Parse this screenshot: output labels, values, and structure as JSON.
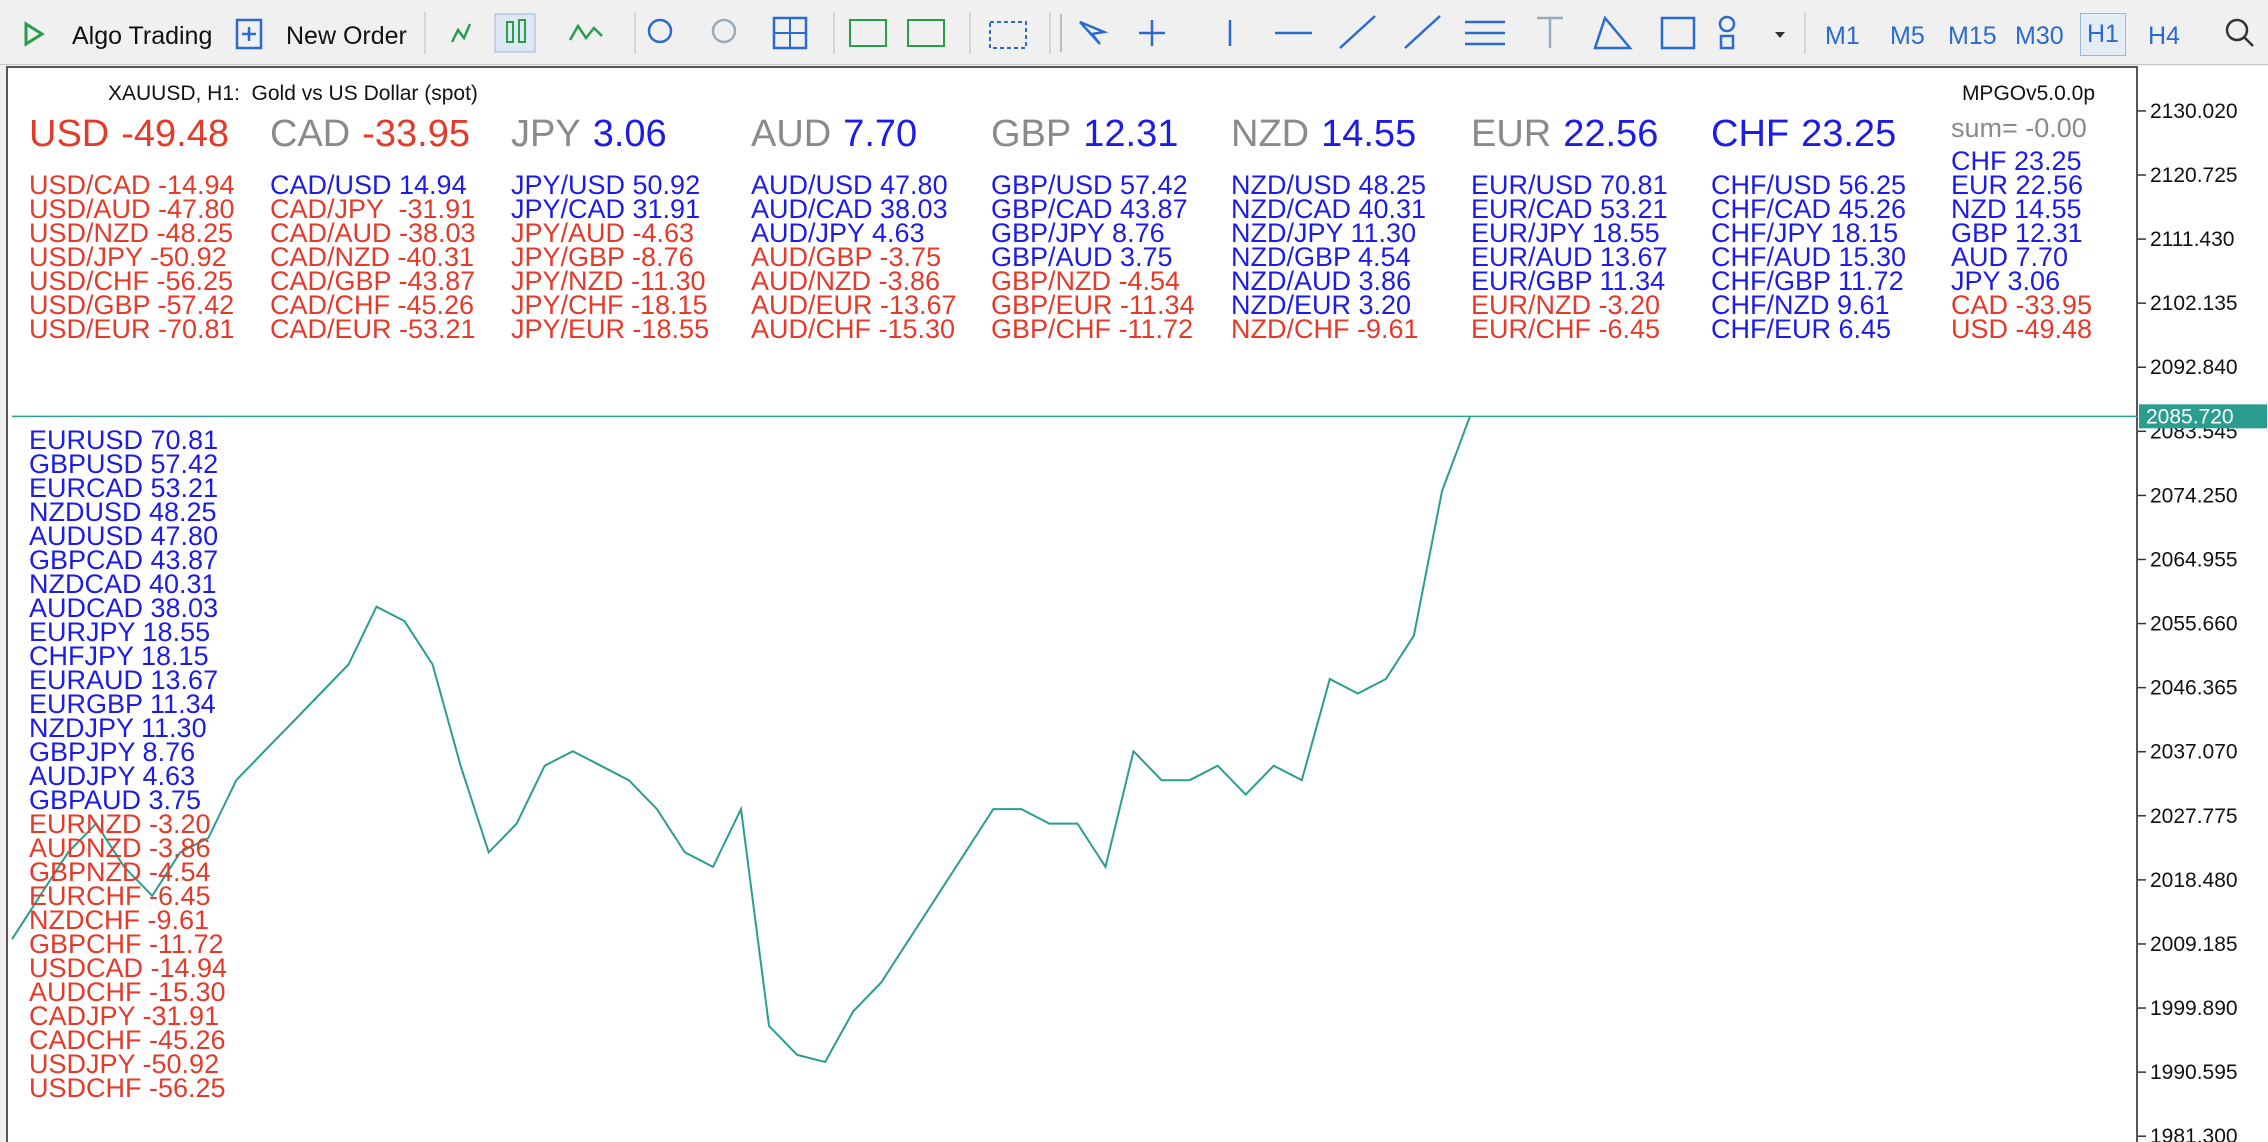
{
  "toolbar": {
    "algo_trading": "Algo Trading",
    "new_order": "New Order",
    "timeframes": [
      "M1",
      "M5",
      "M15",
      "M30",
      "H1",
      "H4"
    ],
    "active_index": 4
  },
  "chart_header": {
    "symbol": "XAUUSD, H1:  Gold vs US Dollar (spot)",
    "indicator": "MPGOv5.0.0p"
  },
  "colors": {
    "positive": "#1c1ce6",
    "negative": "#e5392a",
    "neutral": "#8a8a8a"
  },
  "strength": [
    {
      "currency": "USD",
      "value": "-49.48",
      "label_tone": "negative",
      "value_tone": "negative"
    },
    {
      "currency": "CAD",
      "value": "-33.95",
      "label_tone": "neutral",
      "value_tone": "negative"
    },
    {
      "currency": "JPY",
      "value": "3.06",
      "label_tone": "neutral",
      "value_tone": "positive"
    },
    {
      "currency": "AUD",
      "value": "7.70",
      "label_tone": "neutral",
      "value_tone": "positive"
    },
    {
      "currency": "GBP",
      "value": "12.31",
      "label_tone": "neutral",
      "value_tone": "positive"
    },
    {
      "currency": "NZD",
      "value": "14.55",
      "label_tone": "neutral",
      "value_tone": "positive"
    },
    {
      "currency": "EUR",
      "value": "22.56",
      "label_tone": "neutral",
      "value_tone": "positive"
    },
    {
      "currency": "CHF",
      "value": "23.25",
      "label_tone": "positive",
      "value_tone": "positive"
    }
  ],
  "pairs": [
    [
      {
        "text": "USD/CAD -14.94",
        "tone": "negative"
      },
      {
        "text": "USD/AUD -47.80",
        "tone": "negative"
      },
      {
        "text": "USD/NZD -48.25",
        "tone": "negative"
      },
      {
        "text": "USD/JPY -50.92",
        "tone": "negative"
      },
      {
        "text": "USD/CHF -56.25",
        "tone": "negative"
      },
      {
        "text": "USD/GBP -57.42",
        "tone": "negative"
      },
      {
        "text": "USD/EUR -70.81",
        "tone": "negative"
      }
    ],
    [
      {
        "text": "CAD/USD 14.94",
        "tone": "positive"
      },
      {
        "text": "CAD/JPY  -31.91",
        "tone": "negative"
      },
      {
        "text": "CAD/AUD -38.03",
        "tone": "negative"
      },
      {
        "text": "CAD/NZD -40.31",
        "tone": "negative"
      },
      {
        "text": "CAD/GBP -43.87",
        "tone": "negative"
      },
      {
        "text": "CAD/CHF -45.26",
        "tone": "negative"
      },
      {
        "text": "CAD/EUR -53.21",
        "tone": "negative"
      }
    ],
    [
      {
        "text": "JPY/USD 50.92",
        "tone": "positive"
      },
      {
        "text": "JPY/CAD 31.91",
        "tone": "positive"
      },
      {
        "text": "JPY/AUD -4.63",
        "tone": "negative"
      },
      {
        "text": "JPY/GBP -8.76",
        "tone": "negative"
      },
      {
        "text": "JPY/NZD -11.30",
        "tone": "negative"
      },
      {
        "text": "JPY/CHF -18.15",
        "tone": "negative"
      },
      {
        "text": "JPY/EUR -18.55",
        "tone": "negative"
      }
    ],
    [
      {
        "text": "AUD/USD 47.80",
        "tone": "positive"
      },
      {
        "text": "AUD/CAD 38.03",
        "tone": "positive"
      },
      {
        "text": "AUD/JPY 4.63",
        "tone": "positive"
      },
      {
        "text": "AUD/GBP -3.75",
        "tone": "negative"
      },
      {
        "text": "AUD/NZD -3.86",
        "tone": "negative"
      },
      {
        "text": "AUD/EUR -13.67",
        "tone": "negative"
      },
      {
        "text": "AUD/CHF -15.30",
        "tone": "negative"
      }
    ],
    [
      {
        "text": "GBP/USD 57.42",
        "tone": "positive"
      },
      {
        "text": "GBP/CAD 43.87",
        "tone": "positive"
      },
      {
        "text": "GBP/JPY 8.76",
        "tone": "positive"
      },
      {
        "text": "GBP/AUD 3.75",
        "tone": "positive"
      },
      {
        "text": "GBP/NZD -4.54",
        "tone": "negative"
      },
      {
        "text": "GBP/EUR -11.34",
        "tone": "negative"
      },
      {
        "text": "GBP/CHF -11.72",
        "tone": "negative"
      }
    ],
    [
      {
        "text": "NZD/USD 48.25",
        "tone": "positive"
      },
      {
        "text": "NZD/CAD 40.31",
        "tone": "positive"
      },
      {
        "text": "NZD/JPY 11.30",
        "tone": "positive"
      },
      {
        "text": "NZD/GBP 4.54",
        "tone": "positive"
      },
      {
        "text": "NZD/AUD 3.86",
        "tone": "positive"
      },
      {
        "text": "NZD/EUR 3.20",
        "tone": "positive"
      },
      {
        "text": "NZD/CHF -9.61",
        "tone": "negative"
      }
    ],
    [
      {
        "text": "EUR/USD 70.81",
        "tone": "positive"
      },
      {
        "text": "EUR/CAD 53.21",
        "tone": "positive"
      },
      {
        "text": "EUR/JPY 18.55",
        "tone": "positive"
      },
      {
        "text": "EUR/AUD 13.67",
        "tone": "positive"
      },
      {
        "text": "EUR/GBP 11.34",
        "tone": "positive"
      },
      {
        "text": "EUR/NZD -3.20",
        "tone": "negative"
      },
      {
        "text": "EUR/CHF -6.45",
        "tone": "negative"
      }
    ],
    [
      {
        "text": "CHF/USD 56.25",
        "tone": "positive"
      },
      {
        "text": "CHF/CAD 45.26",
        "tone": "positive"
      },
      {
        "text": "CHF/JPY 18.15",
        "tone": "positive"
      },
      {
        "text": "CHF/AUD 15.30",
        "tone": "positive"
      },
      {
        "text": "CHF/GBP 11.72",
        "tone": "positive"
      },
      {
        "text": "CHF/NZD 9.61",
        "tone": "positive"
      },
      {
        "text": "CHF/EUR 6.45",
        "tone": "positive"
      }
    ]
  ],
  "summary": {
    "sum": "sum= -0.00",
    "items": [
      {
        "text": "CHF 23.25",
        "tone": "positive"
      },
      {
        "text": "EUR 22.56",
        "tone": "positive"
      },
      {
        "text": "NZD 14.55",
        "tone": "positive"
      },
      {
        "text": "GBP 12.31",
        "tone": "positive"
      },
      {
        "text": "AUD 7.70",
        "tone": "positive"
      },
      {
        "text": "JPY 3.06",
        "tone": "positive"
      },
      {
        "text": "CAD -33.95",
        "tone": "negative"
      },
      {
        "text": "USD -49.48",
        "tone": "negative"
      }
    ]
  },
  "ranking": [
    {
      "text": "EURUSD 70.81",
      "tone": "positive"
    },
    {
      "text": "GBPUSD 57.42",
      "tone": "positive"
    },
    {
      "text": "EURCAD 53.21",
      "tone": "positive"
    },
    {
      "text": "NZDUSD 48.25",
      "tone": "positive"
    },
    {
      "text": "AUDUSD 47.80",
      "tone": "positive"
    },
    {
      "text": "GBPCAD 43.87",
      "tone": "positive"
    },
    {
      "text": "NZDCAD 40.31",
      "tone": "positive"
    },
    {
      "text": "AUDCAD 38.03",
      "tone": "positive"
    },
    {
      "text": "EURJPY 18.55",
      "tone": "positive"
    },
    {
      "text": "CHFJPY 18.15",
      "tone": "positive"
    },
    {
      "text": "EURAUD 13.67",
      "tone": "positive"
    },
    {
      "text": "EURGBP 11.34",
      "tone": "positive"
    },
    {
      "text": "NZDJPY 11.30",
      "tone": "positive"
    },
    {
      "text": "GBPJPY 8.76",
      "tone": "positive"
    },
    {
      "text": "AUDJPY 4.63",
      "tone": "positive"
    },
    {
      "text": "GBPAUD 3.75",
      "tone": "positive"
    },
    {
      "text": "EURNZD -3.20",
      "tone": "negative"
    },
    {
      "text": "AUDNZD -3.86",
      "tone": "negative"
    },
    {
      "text": "GBPNZD -4.54",
      "tone": "negative"
    },
    {
      "text": "EURCHF -6.45",
      "tone": "negative"
    },
    {
      "text": "NZDCHF -9.61",
      "tone": "negative"
    },
    {
      "text": "GBPCHF -11.72",
      "tone": "negative"
    },
    {
      "text": "USDCAD -14.94",
      "tone": "negative"
    },
    {
      "text": "AUDCHF -15.30",
      "tone": "negative"
    },
    {
      "text": "CADJPY -31.91",
      "tone": "negative"
    },
    {
      "text": "CADCHF -45.26",
      "tone": "negative"
    },
    {
      "text": "USDJPY -50.92",
      "tone": "negative"
    },
    {
      "text": "USDCHF -56.25",
      "tone": "negative"
    }
  ],
  "chart_data": {
    "type": "line",
    "color": "#2a9d8f",
    "ylim": [
      1980.46,
      2136.1
    ],
    "values": [
      2009.88,
      2016.17,
      2022.46,
      2026.65,
      2020.36,
      2016.17,
      2022.46,
      2024.56,
      2032.94,
      2037.14,
      2041.33,
      2045.52,
      2049.72,
      2058.1,
      2056.01,
      2049.72,
      2035.04,
      2022.46,
      2026.65,
      2035.04,
      2037.14,
      2035.04,
      2032.94,
      2028.75,
      2022.46,
      2020.36,
      2028.75,
      1997.3,
      1993.11,
      1992.06,
      1999.4,
      2003.59,
      2009.88,
      2016.17,
      2022.46,
      2028.75,
      2028.75,
      2026.65,
      2026.65,
      2020.36,
      2037.14,
      2032.94,
      2032.94,
      2035.04,
      2030.85,
      2035.04,
      2032.94,
      2047.62,
      2045.52,
      2047.62,
      2053.91,
      2074.88,
      2085.72
    ],
    "yticks": [
      {
        "value": 2130.02,
        "label": "2130.020"
      },
      {
        "value": 2120.725,
        "label": "2120.725"
      },
      {
        "value": 2111.43,
        "label": "2111.430"
      },
      {
        "value": 2102.135,
        "label": "2102.135"
      },
      {
        "value": 2092.84,
        "label": "2092.840"
      },
      {
        "value": 2083.545,
        "label": "2083.545"
      },
      {
        "value": 2074.25,
        "label": "2074.250"
      },
      {
        "value": 2064.955,
        "label": "2064.955"
      },
      {
        "value": 2055.66,
        "label": "2055.660"
      },
      {
        "value": 2046.365,
        "label": "2046.365"
      },
      {
        "value": 2037.07,
        "label": "2037.070"
      },
      {
        "value": 2027.775,
        "label": "2027.775"
      },
      {
        "value": 2018.48,
        "label": "2018.480"
      },
      {
        "value": 2009.185,
        "label": "2009.185"
      },
      {
        "value": 1999.89,
        "label": "1999.890"
      },
      {
        "value": 1990.595,
        "label": "1990.595"
      },
      {
        "value": 1981.3,
        "label": "1981.300"
      }
    ],
    "current": {
      "value": 2085.72,
      "label": "2085.720"
    }
  }
}
